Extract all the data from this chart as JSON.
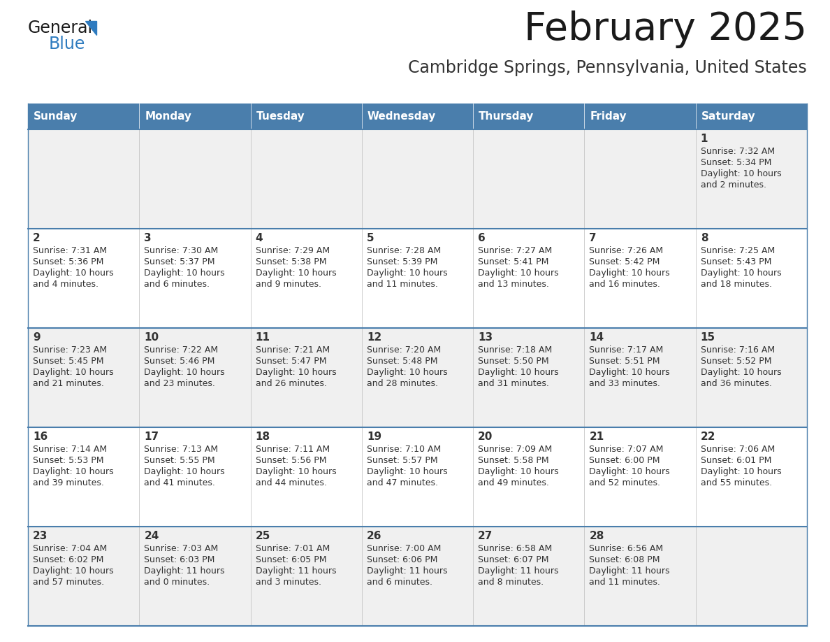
{
  "title": "February 2025",
  "subtitle": "Cambridge Springs, Pennsylvania, United States",
  "header_color": "#4a7eac",
  "header_text_color": "#ffffff",
  "day_names": [
    "Sunday",
    "Monday",
    "Tuesday",
    "Wednesday",
    "Thursday",
    "Friday",
    "Saturday"
  ],
  "bg_color": "#ffffff",
  "cell_bg_even": "#f0f0f0",
  "cell_bg_odd": "#ffffff",
  "divider_color": "#4a7eac",
  "text_color": "#333333",
  "title_color": "#1a1a1a",
  "subtitle_color": "#333333",
  "logo_general_color": "#1a1a1a",
  "logo_blue_color": "#2e7bbf",
  "calendar_data": [
    [
      null,
      null,
      null,
      null,
      null,
      null,
      {
        "day": 1,
        "sunrise": "7:32 AM",
        "sunset": "5:34 PM",
        "daylight": "10 hours and 2 minutes."
      }
    ],
    [
      {
        "day": 2,
        "sunrise": "7:31 AM",
        "sunset": "5:36 PM",
        "daylight": "10 hours and 4 minutes."
      },
      {
        "day": 3,
        "sunrise": "7:30 AM",
        "sunset": "5:37 PM",
        "daylight": "10 hours and 6 minutes."
      },
      {
        "day": 4,
        "sunrise": "7:29 AM",
        "sunset": "5:38 PM",
        "daylight": "10 hours and 9 minutes."
      },
      {
        "day": 5,
        "sunrise": "7:28 AM",
        "sunset": "5:39 PM",
        "daylight": "10 hours and 11 minutes."
      },
      {
        "day": 6,
        "sunrise": "7:27 AM",
        "sunset": "5:41 PM",
        "daylight": "10 hours and 13 minutes."
      },
      {
        "day": 7,
        "sunrise": "7:26 AM",
        "sunset": "5:42 PM",
        "daylight": "10 hours and 16 minutes."
      },
      {
        "day": 8,
        "sunrise": "7:25 AM",
        "sunset": "5:43 PM",
        "daylight": "10 hours and 18 minutes."
      }
    ],
    [
      {
        "day": 9,
        "sunrise": "7:23 AM",
        "sunset": "5:45 PM",
        "daylight": "10 hours and 21 minutes."
      },
      {
        "day": 10,
        "sunrise": "7:22 AM",
        "sunset": "5:46 PM",
        "daylight": "10 hours and 23 minutes."
      },
      {
        "day": 11,
        "sunrise": "7:21 AM",
        "sunset": "5:47 PM",
        "daylight": "10 hours and 26 minutes."
      },
      {
        "day": 12,
        "sunrise": "7:20 AM",
        "sunset": "5:48 PM",
        "daylight": "10 hours and 28 minutes."
      },
      {
        "day": 13,
        "sunrise": "7:18 AM",
        "sunset": "5:50 PM",
        "daylight": "10 hours and 31 minutes."
      },
      {
        "day": 14,
        "sunrise": "7:17 AM",
        "sunset": "5:51 PM",
        "daylight": "10 hours and 33 minutes."
      },
      {
        "day": 15,
        "sunrise": "7:16 AM",
        "sunset": "5:52 PM",
        "daylight": "10 hours and 36 minutes."
      }
    ],
    [
      {
        "day": 16,
        "sunrise": "7:14 AM",
        "sunset": "5:53 PM",
        "daylight": "10 hours and 39 minutes."
      },
      {
        "day": 17,
        "sunrise": "7:13 AM",
        "sunset": "5:55 PM",
        "daylight": "10 hours and 41 minutes."
      },
      {
        "day": 18,
        "sunrise": "7:11 AM",
        "sunset": "5:56 PM",
        "daylight": "10 hours and 44 minutes."
      },
      {
        "day": 19,
        "sunrise": "7:10 AM",
        "sunset": "5:57 PM",
        "daylight": "10 hours and 47 minutes."
      },
      {
        "day": 20,
        "sunrise": "7:09 AM",
        "sunset": "5:58 PM",
        "daylight": "10 hours and 49 minutes."
      },
      {
        "day": 21,
        "sunrise": "7:07 AM",
        "sunset": "6:00 PM",
        "daylight": "10 hours and 52 minutes."
      },
      {
        "day": 22,
        "sunrise": "7:06 AM",
        "sunset": "6:01 PM",
        "daylight": "10 hours and 55 minutes."
      }
    ],
    [
      {
        "day": 23,
        "sunrise": "7:04 AM",
        "sunset": "6:02 PM",
        "daylight": "10 hours and 57 minutes."
      },
      {
        "day": 24,
        "sunrise": "7:03 AM",
        "sunset": "6:03 PM",
        "daylight": "11 hours and 0 minutes."
      },
      {
        "day": 25,
        "sunrise": "7:01 AM",
        "sunset": "6:05 PM",
        "daylight": "11 hours and 3 minutes."
      },
      {
        "day": 26,
        "sunrise": "7:00 AM",
        "sunset": "6:06 PM",
        "daylight": "11 hours and 6 minutes."
      },
      {
        "day": 27,
        "sunrise": "6:58 AM",
        "sunset": "6:07 PM",
        "daylight": "11 hours and 8 minutes."
      },
      {
        "day": 28,
        "sunrise": "6:56 AM",
        "sunset": "6:08 PM",
        "daylight": "11 hours and 11 minutes."
      },
      null
    ]
  ]
}
